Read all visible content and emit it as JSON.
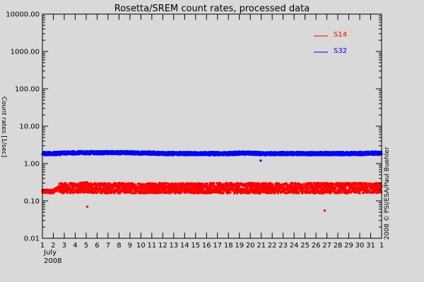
{
  "chart_data": {
    "type": "scatter",
    "title": "Rosetta/SREM count rates, processed data",
    "ylabel": "Count rates [1/sec]",
    "credit": "2008 © PSI/ESA/Paul Buehler",
    "x_month_label": "July",
    "x_year_label": "2008",
    "y_scale": "log",
    "ylim": [
      0.01,
      10000
    ],
    "y_tick_values": [
      0.01,
      0.1,
      1,
      10,
      100,
      1000,
      10000
    ],
    "y_tick_labels": [
      "0.01",
      "0.10",
      "1.00",
      "10.00",
      "100.00",
      "1000.00",
      "10000.00"
    ],
    "xlim": [
      1,
      32
    ],
    "x_tick_labels": [
      "1",
      "2",
      "3",
      "4",
      "5",
      "6",
      "7",
      "8",
      "9",
      "10",
      "11",
      "12",
      "13",
      "14",
      "15",
      "16",
      "17",
      "18",
      "19",
      "20",
      "21",
      "22",
      "23",
      "24",
      "25",
      "26",
      "27",
      "28",
      "29",
      "30",
      "31",
      "1"
    ],
    "grid": false,
    "legend_position": "top-right",
    "series": [
      {
        "name": "S14",
        "color": "#ff0000",
        "x": [
          1.0,
          2.0,
          2.5,
          3,
          4,
          5,
          6,
          7,
          8,
          9,
          10,
          11,
          12,
          13,
          14,
          15,
          16,
          17,
          18,
          19,
          20,
          21,
          22,
          23,
          24,
          25,
          26,
          27,
          28,
          29,
          30,
          31,
          32
        ],
        "y": [
          0.18,
          0.18,
          0.22,
          0.22,
          0.22,
          0.23,
          0.22,
          0.22,
          0.22,
          0.22,
          0.22,
          0.22,
          0.22,
          0.22,
          0.22,
          0.22,
          0.22,
          0.22,
          0.22,
          0.22,
          0.22,
          0.22,
          0.22,
          0.22,
          0.22,
          0.22,
          0.22,
          0.22,
          0.22,
          0.22,
          0.22,
          0.22,
          0.22
        ],
        "outliers": [
          {
            "x": 5.1,
            "y": 0.07
          },
          {
            "x": 26.8,
            "y": 0.055
          }
        ]
      },
      {
        "name": "S32",
        "color": "#0000ff",
        "x": [
          1.0,
          2.0,
          3,
          4,
          5,
          6,
          7,
          8,
          9,
          10,
          11,
          12,
          13,
          14,
          15,
          16,
          17,
          18,
          19,
          20,
          21,
          22,
          23,
          24,
          25,
          26,
          27,
          28,
          29,
          30,
          31,
          32
        ],
        "y": [
          1.85,
          1.85,
          1.9,
          1.95,
          1.95,
          1.95,
          1.95,
          1.95,
          1.95,
          1.9,
          1.9,
          1.85,
          1.85,
          1.85,
          1.85,
          1.85,
          1.85,
          1.85,
          1.9,
          1.9,
          1.85,
          1.85,
          1.85,
          1.85,
          1.85,
          1.85,
          1.85,
          1.85,
          1.85,
          1.85,
          1.9,
          1.9
        ],
        "outliers": [
          {
            "x": 20.95,
            "y": 1.2
          }
        ]
      }
    ]
  }
}
